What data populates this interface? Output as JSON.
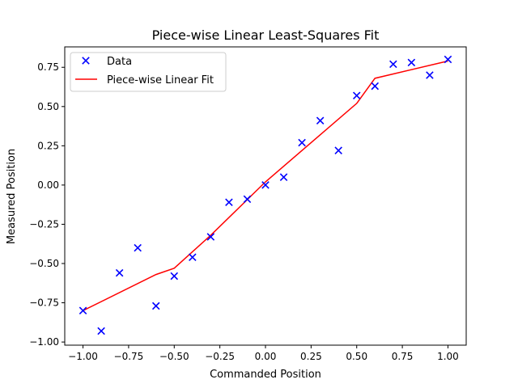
{
  "chart_data": {
    "type": "scatter",
    "title": "Piece-wise Linear Least-Squares Fit",
    "xlabel": "Commanded Position",
    "ylabel": "Measured Position",
    "xlim": [
      -1.1,
      1.1
    ],
    "ylim": [
      -1.02,
      0.88
    ],
    "xticks": [
      -1.0,
      -0.75,
      -0.5,
      -0.25,
      0.0,
      0.25,
      0.5,
      0.75,
      1.0
    ],
    "xtick_labels": [
      "−1.00",
      "−0.75",
      "−0.50",
      "−0.25",
      "0.00",
      "0.25",
      "0.50",
      "0.75",
      "1.00"
    ],
    "yticks": [
      -1.0,
      -0.75,
      -0.5,
      -0.25,
      0.0,
      0.25,
      0.5,
      0.75
    ],
    "ytick_labels": [
      "−1.00",
      "−0.75",
      "−0.50",
      "−0.25",
      "0.00",
      "0.25",
      "0.50",
      "0.75"
    ],
    "grid": false,
    "legend_position": "top-left",
    "series": [
      {
        "name": "Data",
        "kind": "scatter",
        "marker": "x",
        "color": "#0000ff",
        "x": [
          -1.0,
          -0.9,
          -0.8,
          -0.7,
          -0.6,
          -0.5,
          -0.4,
          -0.3,
          -0.2,
          -0.1,
          0.0,
          0.1,
          0.2,
          0.3,
          0.4,
          0.5,
          0.6,
          0.7,
          0.8,
          0.9,
          1.0
        ],
        "y": [
          -0.8,
          -0.93,
          -0.56,
          -0.4,
          -0.77,
          -0.58,
          -0.46,
          -0.33,
          -0.11,
          -0.09,
          0.0,
          0.05,
          0.27,
          0.41,
          0.22,
          0.57,
          0.63,
          0.77,
          0.78,
          0.7,
          0.8
        ]
      },
      {
        "name": "Piece-wise Linear Fit",
        "kind": "line",
        "color": "#ff0000",
        "x": [
          -1.0,
          -0.6,
          -0.5,
          -0.3,
          0.0,
          0.5,
          0.6,
          1.0
        ],
        "y": [
          -0.8,
          -0.57,
          -0.53,
          -0.32,
          0.02,
          0.52,
          0.68,
          0.79
        ]
      }
    ]
  }
}
